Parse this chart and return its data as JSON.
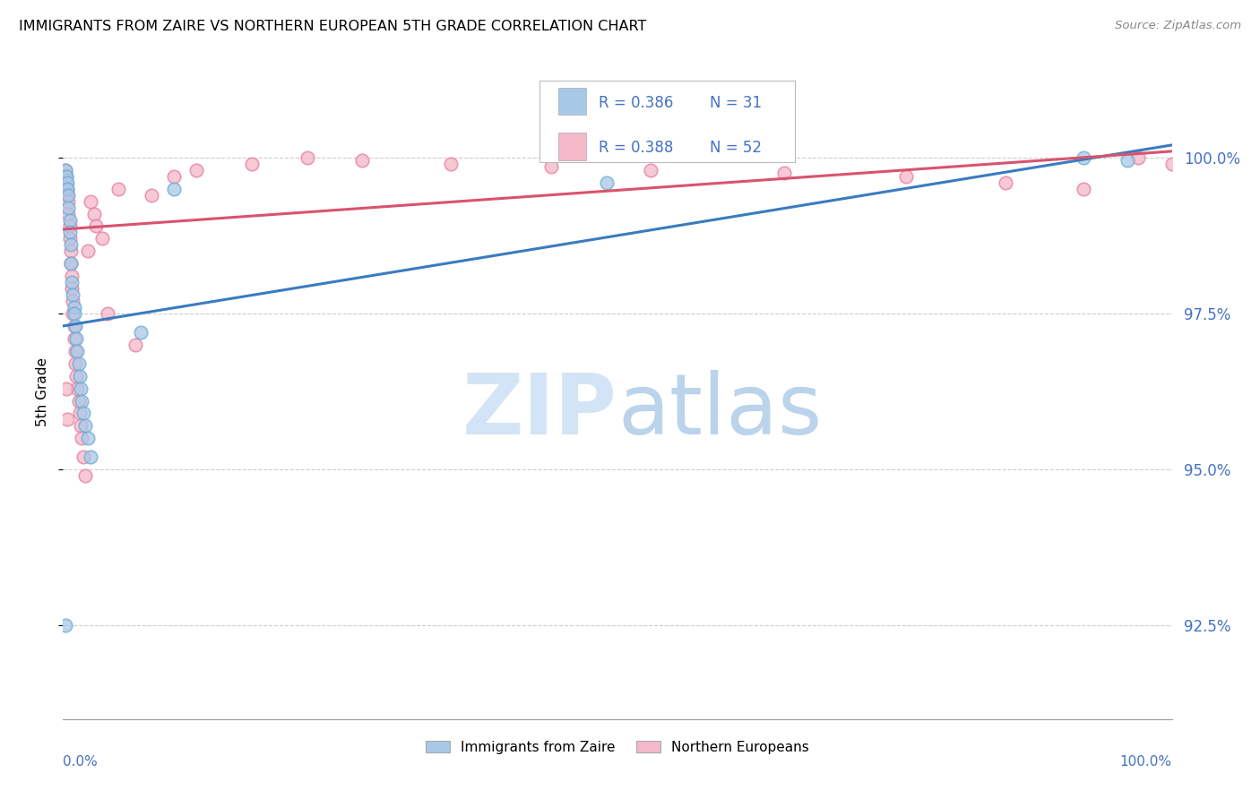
{
  "title": "IMMIGRANTS FROM ZAIRE VS NORTHERN EUROPEAN 5TH GRADE CORRELATION CHART",
  "source": "Source: ZipAtlas.com",
  "ylabel": "5th Grade",
  "yticks": [
    92.5,
    95.0,
    97.5,
    100.0
  ],
  "ytick_labels": [
    "92.5%",
    "95.0%",
    "97.5%",
    "100.0%"
  ],
  "xlim": [
    0.0,
    1.0
  ],
  "ylim": [
    91.0,
    101.5
  ],
  "blue_fill_color": "#a8c8e8",
  "blue_edge_color": "#6baed6",
  "pink_fill_color": "#f4b8c8",
  "pink_edge_color": "#e87fa0",
  "blue_line_color": "#3a7bbf",
  "pink_line_color": "#d9536e",
  "legend_R_color": "#4472c4",
  "watermark_zip_color": "#cce0f5",
  "watermark_atlas_color": "#b0cce8",
  "blue_line_x0": 0.0,
  "blue_line_y0": 97.3,
  "blue_line_x1": 1.0,
  "blue_line_y1": 100.2,
  "pink_line_x0": 0.0,
  "pink_line_y0": 98.85,
  "pink_line_x1": 1.0,
  "pink_line_y1": 100.1,
  "blue_x": [
    0.002,
    0.003,
    0.004,
    0.004,
    0.005,
    0.005,
    0.006,
    0.006,
    0.007,
    0.007,
    0.008,
    0.009,
    0.01,
    0.01,
    0.011,
    0.012,
    0.013,
    0.014,
    0.015,
    0.016,
    0.017,
    0.018,
    0.02,
    0.022,
    0.025,
    0.07,
    0.1,
    0.49,
    0.92,
    0.96,
    0.002
  ],
  "blue_y": [
    99.8,
    99.7,
    99.6,
    99.5,
    99.4,
    99.2,
    99.0,
    98.8,
    98.6,
    98.3,
    98.0,
    97.8,
    97.6,
    97.5,
    97.3,
    97.1,
    96.9,
    96.7,
    96.5,
    96.3,
    96.1,
    95.9,
    95.7,
    95.5,
    95.2,
    97.2,
    99.5,
    99.6,
    100.0,
    99.95,
    92.5
  ],
  "pink_x": [
    0.002,
    0.003,
    0.003,
    0.004,
    0.004,
    0.005,
    0.005,
    0.006,
    0.006,
    0.007,
    0.007,
    0.008,
    0.008,
    0.009,
    0.009,
    0.01,
    0.01,
    0.011,
    0.011,
    0.012,
    0.013,
    0.014,
    0.015,
    0.016,
    0.017,
    0.018,
    0.02,
    0.022,
    0.025,
    0.028,
    0.03,
    0.035,
    0.04,
    0.05,
    0.065,
    0.08,
    0.1,
    0.12,
    0.17,
    0.22,
    0.27,
    0.35,
    0.44,
    0.53,
    0.65,
    0.76,
    0.85,
    0.92,
    0.97,
    1.0,
    0.003,
    0.004
  ],
  "pink_y": [
    99.8,
    99.7,
    99.6,
    99.5,
    99.4,
    99.3,
    99.1,
    98.9,
    98.7,
    98.5,
    98.3,
    98.1,
    97.9,
    97.7,
    97.5,
    97.3,
    97.1,
    96.9,
    96.7,
    96.5,
    96.3,
    96.1,
    95.9,
    95.7,
    95.5,
    95.2,
    94.9,
    98.5,
    99.3,
    99.1,
    98.9,
    98.7,
    97.5,
    99.5,
    97.0,
    99.4,
    99.7,
    99.8,
    99.9,
    100.0,
    99.95,
    99.9,
    99.85,
    99.8,
    99.75,
    99.7,
    99.6,
    99.5,
    100.0,
    99.9,
    96.3,
    95.8
  ]
}
